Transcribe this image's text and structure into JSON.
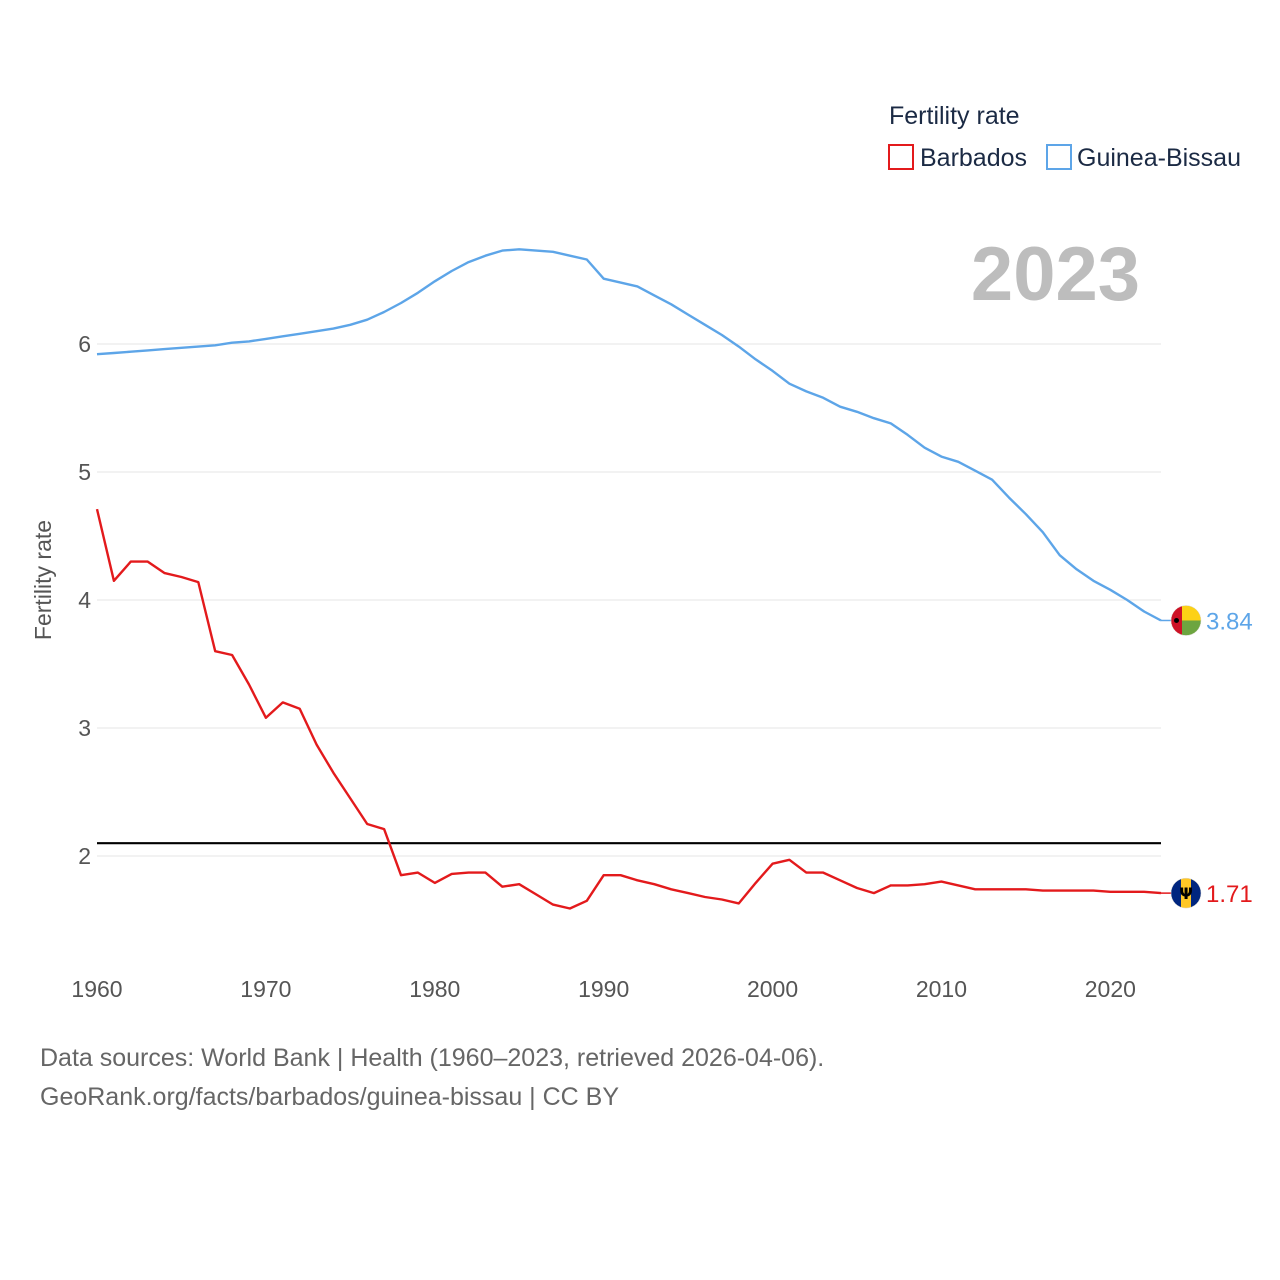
{
  "chart_data": {
    "type": "line",
    "title": "",
    "xlabel": "",
    "ylabel": "Fertility rate",
    "xlim": [
      1960,
      2023
    ],
    "ylim": [
      1.2,
      7.0
    ],
    "yticks": [
      2,
      3,
      4,
      5,
      6
    ],
    "xticks": [
      1960,
      1970,
      1980,
      1990,
      2000,
      2010,
      2020
    ],
    "legend_title": "Fertility rate",
    "year_label": "2023",
    "reference_line": 2.1,
    "x": [
      1960,
      1961,
      1962,
      1963,
      1964,
      1965,
      1966,
      1967,
      1968,
      1969,
      1970,
      1971,
      1972,
      1973,
      1974,
      1975,
      1976,
      1977,
      1978,
      1979,
      1980,
      1981,
      1982,
      1983,
      1984,
      1985,
      1986,
      1987,
      1988,
      1989,
      1990,
      1991,
      1992,
      1993,
      1994,
      1995,
      1996,
      1997,
      1998,
      1999,
      2000,
      2001,
      2002,
      2003,
      2004,
      2005,
      2006,
      2007,
      2008,
      2009,
      2010,
      2011,
      2012,
      2013,
      2014,
      2015,
      2016,
      2017,
      2018,
      2019,
      2020,
      2021,
      2022,
      2023
    ],
    "series": [
      {
        "name": "Barbados",
        "color": "#e31a1c",
        "end_label": "1.71",
        "values": [
          4.71,
          4.15,
          4.3,
          4.3,
          4.21,
          4.18,
          4.14,
          3.6,
          3.57,
          3.34,
          3.08,
          3.2,
          3.15,
          2.87,
          2.65,
          2.45,
          2.25,
          2.21,
          1.85,
          1.87,
          1.79,
          1.86,
          1.87,
          1.87,
          1.76,
          1.78,
          1.7,
          1.62,
          1.59,
          1.65,
          1.85,
          1.85,
          1.81,
          1.78,
          1.74,
          1.71,
          1.68,
          1.66,
          1.63,
          1.79,
          1.94,
          1.97,
          1.87,
          1.87,
          1.81,
          1.75,
          1.71,
          1.77,
          1.77,
          1.78,
          1.8,
          1.77,
          1.74,
          1.74,
          1.74,
          1.74,
          1.73,
          1.73,
          1.73,
          1.73,
          1.72,
          1.72,
          1.72,
          1.71
        ]
      },
      {
        "name": "Guinea-Bissau",
        "color": "#5da5e8",
        "end_label": "3.84",
        "values": [
          5.92,
          5.93,
          5.94,
          5.95,
          5.96,
          5.97,
          5.98,
          5.99,
          6.01,
          6.02,
          6.04,
          6.06,
          6.08,
          6.1,
          6.12,
          6.15,
          6.19,
          6.25,
          6.32,
          6.4,
          6.49,
          6.57,
          6.64,
          6.69,
          6.73,
          6.74,
          6.73,
          6.72,
          6.69,
          6.66,
          6.51,
          6.48,
          6.45,
          6.38,
          6.31,
          6.23,
          6.15,
          6.07,
          5.98,
          5.88,
          5.79,
          5.69,
          5.63,
          5.58,
          5.51,
          5.47,
          5.42,
          5.38,
          5.29,
          5.19,
          5.12,
          5.08,
          5.01,
          4.94,
          4.8,
          4.67,
          4.53,
          4.35,
          4.24,
          4.15,
          4.08,
          4.0,
          3.91,
          3.84
        ]
      }
    ]
  },
  "footer": {
    "sources": "Data sources: World Bank | Health (1960–2023, retrieved 2026-04-06).",
    "credit": "GeoRank.org/facts/barbados/guinea-bissau | CC BY"
  }
}
